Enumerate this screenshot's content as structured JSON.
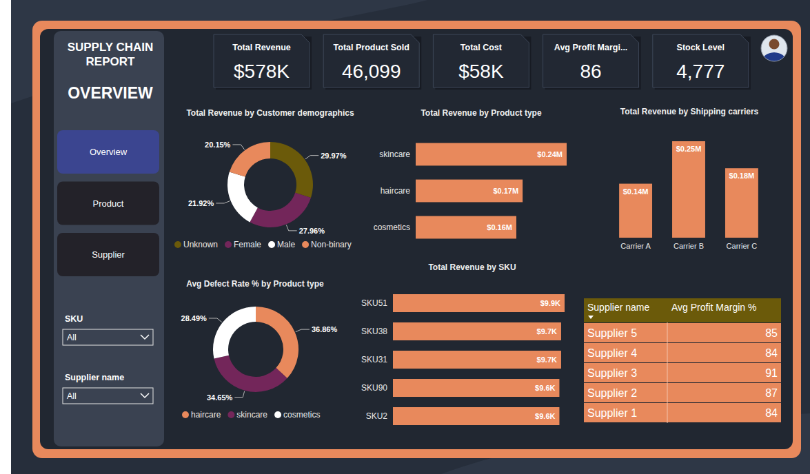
{
  "report": {
    "title": "SUPPLY CHAIN REPORT",
    "page": "OVERVIEW"
  },
  "nav": {
    "items": [
      "Overview",
      "Product",
      "Supplier"
    ],
    "active": "Overview"
  },
  "filters": [
    {
      "label": "SKU",
      "value": "All"
    },
    {
      "label": "Supplier name",
      "value": "All"
    }
  ],
  "kpis": [
    {
      "label": "Total Revenue",
      "value": "$578K"
    },
    {
      "label": "Total Product Sold",
      "value": "46,099"
    },
    {
      "label": "Total Cost",
      "value": "$58K"
    },
    {
      "label": "Avg Profit Margi...",
      "value": "86"
    },
    {
      "label": "Stock Level",
      "value": "4,777"
    }
  ],
  "chart_data": [
    {
      "type": "donut",
      "title": "Total Revenue by Customer demographics",
      "categories": [
        "Unknown",
        "Female",
        "Male",
        "Non-binary"
      ],
      "values": [
        29.97,
        27.96,
        21.92,
        20.15
      ],
      "value_labels": [
        "29.97%",
        "27.96%",
        "21.92%",
        "20.15%"
      ],
      "colors": [
        "#6b5a0a",
        "#73265a",
        "#ffffff",
        "#e8895c"
      ],
      "data_labels": true,
      "legend": "bottom"
    },
    {
      "type": "bar",
      "title": "Total Revenue by Product type",
      "orientation": "horizontal",
      "categories": [
        "skincare",
        "haircare",
        "cosmetics"
      ],
      "values": [
        0.24,
        0.17,
        0.16
      ],
      "value_labels": [
        "$0.24M",
        "$0.17M",
        "$0.16M"
      ],
      "color": "#e8895c",
      "data_labels": true,
      "tick_labels": "y"
    },
    {
      "type": "bar",
      "title": "Total Revenue by Shipping carriers",
      "categories": [
        "Carrier A",
        "Carrier B",
        "Carrier C"
      ],
      "values": [
        0.14,
        0.25,
        0.18
      ],
      "value_labels": [
        "$0.14M",
        "$0.25M",
        "$0.18M"
      ],
      "color": "#e8895c",
      "data_labels": true,
      "tick_labels": "x"
    },
    {
      "type": "donut",
      "title": "Avg Defect Rate % by Product type",
      "categories": [
        "haircare",
        "skincare",
        "cosmetics"
      ],
      "values": [
        36.86,
        34.65,
        28.49
      ],
      "value_labels": [
        "36.86%",
        "34.65%",
        "28.49%"
      ],
      "colors": [
        "#e8895c",
        "#73265a",
        "#ffffff"
      ],
      "data_labels": true,
      "legend": "bottom"
    },
    {
      "type": "bar",
      "title": "Total Revenue by SKU",
      "orientation": "horizontal",
      "categories": [
        "SKU51",
        "SKU38",
        "SKU31",
        "SKU90",
        "SKU2"
      ],
      "values": [
        9.9,
        9.7,
        9.7,
        9.6,
        9.6
      ],
      "value_labels": [
        "$9.9K",
        "$9.7K",
        "$9.7K",
        "$9.6K",
        "$9.6K"
      ],
      "color": "#e8895c",
      "data_labels": true,
      "tick_labels": "y"
    }
  ],
  "table": {
    "columns": [
      "Supplier name",
      "Avg Profit Margin %"
    ],
    "rows": [
      [
        "Supplier 5",
        85
      ],
      [
        "Supplier 4",
        84
      ],
      [
        "Supplier 3",
        91
      ],
      [
        "Supplier 2",
        87
      ],
      [
        "Supplier 1",
        84
      ]
    ]
  }
}
